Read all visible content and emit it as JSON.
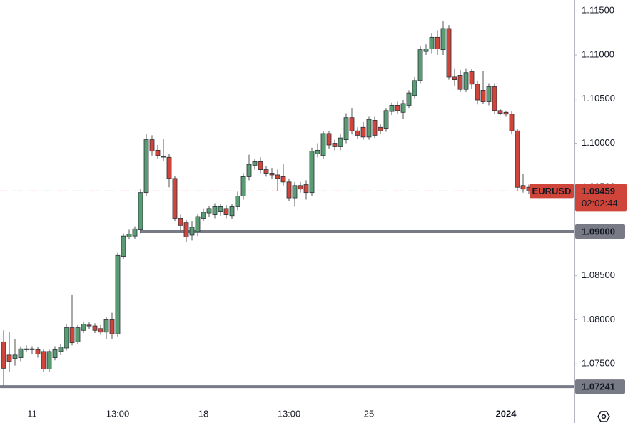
{
  "chart_data": {
    "type": "candlestick",
    "symbol": "EURUSD",
    "up_color": "#5a9c72",
    "down_color": "#d0453a",
    "categories": [
      null,
      null,
      null,
      null,
      null,
      "11",
      null,
      null,
      null,
      null,
      null,
      null,
      null,
      null,
      null,
      null,
      null,
      null,
      null,
      null,
      "13:00",
      null,
      null,
      null,
      null,
      null,
      null,
      null,
      null,
      null,
      null,
      null,
      null,
      null,
      null,
      "18",
      null,
      null,
      null,
      null,
      null,
      null,
      null,
      null,
      null,
      null,
      null,
      null,
      null,
      null,
      "13:00",
      null,
      null,
      null,
      null,
      null,
      null,
      null,
      null,
      null,
      null,
      null,
      null,
      null,
      "25",
      null,
      null,
      null,
      null,
      null,
      null,
      null,
      null,
      null,
      null,
      null,
      null,
      null,
      null,
      null,
      null,
      null,
      null,
      null,
      null,
      null,
      null,
      null,
      "2024",
      null,
      null,
      null,
      null
    ],
    "ohlc": [
      [
        1.0775,
        1.0788,
        1.0725,
        1.0745
      ],
      [
        1.076,
        1.0786,
        1.0741,
        1.0753
      ],
      [
        1.0756,
        1.0778,
        1.0748,
        1.076
      ],
      [
        1.0757,
        1.077,
        1.0753,
        1.0767
      ],
      [
        1.0766,
        1.0771,
        1.0763,
        1.0767
      ],
      [
        1.0767,
        1.077,
        1.0761,
        1.0766
      ],
      [
        1.0766,
        1.0769,
        1.0757,
        1.0761
      ],
      [
        1.0764,
        1.0767,
        1.0741,
        1.0744
      ],
      [
        1.0744,
        1.0766,
        1.0741,
        1.0764
      ],
      [
        1.0757,
        1.077,
        1.0754,
        1.0766
      ],
      [
        1.0764,
        1.0772,
        1.076,
        1.0769
      ],
      [
        1.0768,
        1.0795,
        1.0765,
        1.0791
      ],
      [
        1.0791,
        1.0828,
        1.0771,
        1.0774
      ],
      [
        1.0775,
        1.0794,
        1.0772,
        1.0791
      ],
      [
        1.0788,
        1.0798,
        1.0785,
        1.0795
      ],
      [
        1.0794,
        1.0797,
        1.0789,
        1.0793
      ],
      [
        1.0793,
        1.0796,
        1.0785,
        1.0788
      ],
      [
        1.079,
        1.0794,
        1.0783,
        1.0786
      ],
      [
        1.0786,
        1.0803,
        1.0778,
        1.08
      ],
      [
        1.08,
        1.0808,
        1.0778,
        1.0784
      ],
      [
        1.0784,
        1.0876,
        1.0781,
        1.0873
      ],
      [
        1.0872,
        1.0898,
        1.0869,
        1.0895
      ],
      [
        1.0894,
        1.0902,
        1.0891,
        1.0897
      ],
      [
        1.0895,
        1.0906,
        1.0892,
        1.0903
      ],
      [
        1.0902,
        1.0948,
        1.0898,
        1.0944
      ],
      [
        1.0944,
        1.101,
        1.094,
        1.1004
      ],
      [
        1.1004,
        1.1009,
        1.0986,
        1.0991
      ],
      [
        1.0992,
        1.0998,
        1.0982,
        1.0986
      ],
      [
        1.0985,
        1.1005,
        1.098,
        1.0985
      ],
      [
        1.0984,
        1.0988,
        1.095,
        1.096
      ],
      [
        1.096,
        1.0963,
        1.0912,
        1.0915
      ],
      [
        1.0915,
        1.0919,
        1.09,
        1.0907
      ],
      [
        1.091,
        1.0913,
        1.0888,
        1.0894
      ],
      [
        1.0896,
        1.0912,
        1.089,
        1.0905
      ],
      [
        1.09,
        1.092,
        1.0895,
        1.0917
      ],
      [
        1.0915,
        1.0926,
        1.0912,
        1.0922
      ],
      [
        1.0921,
        1.0929,
        1.0917,
        1.0926
      ],
      [
        1.0919,
        1.0932,
        1.0915,
        1.0928
      ],
      [
        1.0923,
        1.0931,
        1.0918,
        1.0928
      ],
      [
        1.0926,
        1.093,
        1.0915,
        1.0919
      ],
      [
        1.0918,
        1.0931,
        1.0914,
        1.0928
      ],
      [
        1.0928,
        1.0945,
        1.0924,
        1.094
      ],
      [
        1.094,
        1.0966,
        1.0936,
        1.0962
      ],
      [
        1.0962,
        1.0987,
        1.0958,
        1.0976
      ],
      [
        1.0975,
        1.0982,
        1.097,
        1.0979
      ],
      [
        1.0979,
        1.0984,
        1.0966,
        1.097
      ],
      [
        1.097,
        1.0974,
        1.0962,
        1.0966
      ],
      [
        1.0966,
        1.0972,
        1.096,
        1.0964
      ],
      [
        1.0964,
        1.097,
        1.0946,
        1.096
      ],
      [
        1.0962,
        1.0976,
        1.0952,
        1.0956
      ],
      [
        1.0956,
        1.096,
        1.0934,
        1.0938
      ],
      [
        1.0938,
        1.0956,
        1.0928,
        1.0952
      ],
      [
        1.0952,
        1.0956,
        1.0944,
        1.0948
      ],
      [
        1.0953,
        1.0958,
        1.0936,
        1.0944
      ],
      [
        1.0944,
        1.0995,
        1.094,
        1.0991
      ],
      [
        1.0988,
        1.1,
        1.0984,
        1.0992
      ],
      [
        1.0986,
        1.1014,
        1.0982,
        1.1011
      ],
      [
        1.1011,
        1.1014,
        1.0994,
        1.0998
      ],
      [
        1.1,
        1.1004,
        1.0992,
        1.0996
      ],
      [
        1.0996,
        1.101,
        1.0992,
        1.1006
      ],
      [
        1.1004,
        1.1034,
        1.1,
        1.1029
      ],
      [
        1.1029,
        1.104,
        1.101,
        1.1014
      ],
      [
        1.1014,
        1.1018,
        1.1005,
        1.1009
      ],
      [
        1.1018,
        1.1024,
        1.1004,
        1.1007
      ],
      [
        1.1007,
        1.103,
        1.1004,
        1.1027
      ],
      [
        1.1026,
        1.103,
        1.1006,
        1.1009
      ],
      [
        1.1018,
        1.1022,
        1.101,
        1.1014
      ],
      [
        1.1017,
        1.104,
        1.1013,
        1.1037
      ],
      [
        1.1036,
        1.1046,
        1.1032,
        1.1043
      ],
      [
        1.1043,
        1.1047,
        1.1033,
        1.1037
      ],
      [
        1.1035,
        1.1049,
        1.1028,
        1.1045
      ],
      [
        1.1043,
        1.106,
        1.104,
        1.1057
      ],
      [
        1.1054,
        1.1075,
        1.1051,
        1.1071
      ],
      [
        1.1071,
        1.111,
        1.1068,
        1.1106
      ],
      [
        1.1104,
        1.1112,
        1.11,
        1.1107
      ],
      [
        1.1107,
        1.1125,
        1.1102,
        1.112
      ],
      [
        1.112,
        1.1128,
        1.11,
        1.1107
      ],
      [
        1.1106,
        1.1138,
        1.11,
        1.113
      ],
      [
        1.113,
        1.1134,
        1.1072,
        1.1075
      ],
      [
        1.1075,
        1.1085,
        1.1065,
        1.1072
      ],
      [
        1.1077,
        1.1083,
        1.1058,
        1.1061
      ],
      [
        1.1061,
        1.1085,
        1.1058,
        1.108
      ],
      [
        1.1081,
        1.1084,
        1.1062,
        1.1067
      ],
      [
        1.1067,
        1.1071,
        1.1044,
        1.1049
      ],
      [
        1.106,
        1.1082,
        1.1045,
        1.1047
      ],
      [
        1.1047,
        1.1068,
        1.1043,
        1.1064
      ],
      [
        1.1064,
        1.1068,
        1.1033,
        1.1037
      ],
      [
        1.1037,
        1.1039,
        1.1032,
        1.1034
      ],
      [
        1.1035,
        1.1037,
        1.103,
        1.1033
      ],
      [
        1.1033,
        1.1036,
        1.101,
        1.1014
      ],
      [
        1.1014,
        1.1016,
        1.0946,
        1.095
      ],
      [
        1.0952,
        1.0965,
        1.0944,
        1.0948
      ],
      [
        1.095,
        1.0953,
        1.0942,
        1.09459
      ]
    ],
    "ylim": [
      1.07048,
      1.11624
    ],
    "yticks": [
      {
        "value": 1.075,
        "label": "1.07500"
      },
      {
        "value": 1.08,
        "label": "1.08000"
      },
      {
        "value": 1.085,
        "label": "1.08500"
      },
      {
        "value": 1.09,
        "label": "1.09000"
      },
      {
        "value": 1.095,
        "label": "1.09500"
      },
      {
        "value": 1.1,
        "label": "1.10000"
      },
      {
        "value": 1.105,
        "label": "1.10500"
      },
      {
        "value": 1.11,
        "label": "1.11000"
      },
      {
        "value": 1.115,
        "label": "1.11500"
      }
    ],
    "levels": [
      {
        "value": 1.09,
        "label": "1.09000"
      },
      1.07241
    ],
    "last_price": 1.09459,
    "countdown": "02:02:44"
  }
}
